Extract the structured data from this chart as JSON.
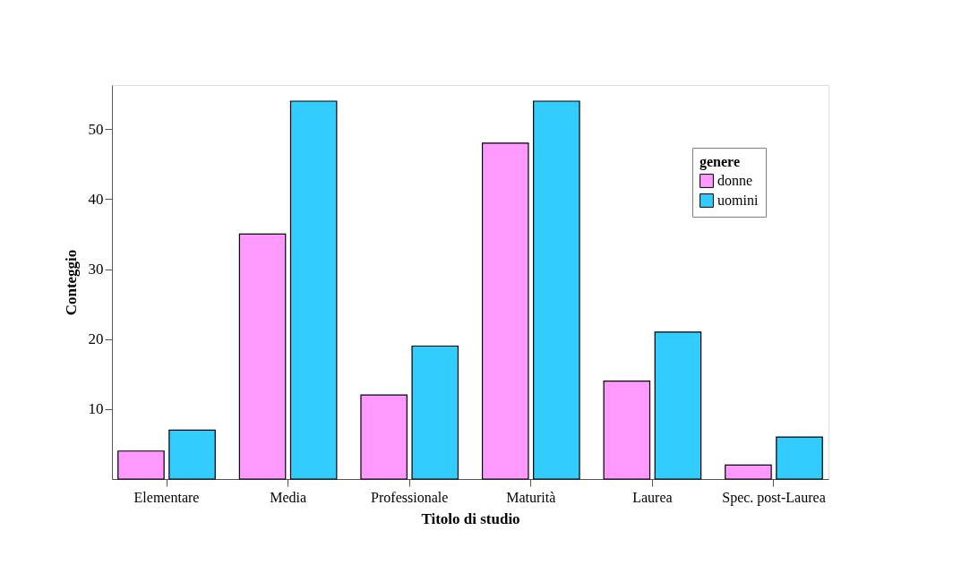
{
  "chart_data": {
    "type": "bar",
    "xlabel": "Titolo di studio",
    "ylabel": "Conteggio",
    "legend_title": "genere",
    "categories": [
      "Elementare",
      "Media",
      "Professionale",
      "Maturità",
      "Laurea",
      "Spec. post-Laurea"
    ],
    "series": [
      {
        "name": "donne",
        "color": "#ff99ff",
        "values": [
          4,
          35,
          12,
          48,
          14,
          2
        ]
      },
      {
        "name": "uomini",
        "color": "#33ccff",
        "values": [
          7,
          54,
          19,
          54,
          21,
          6
        ]
      }
    ],
    "ylim": [
      0,
      56.3
    ],
    "yticks": [
      10,
      20,
      30,
      40,
      50
    ],
    "grid": false,
    "legend": "top right"
  }
}
